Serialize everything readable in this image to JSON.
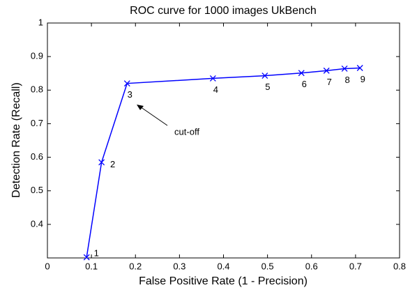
{
  "chart_data": {
    "type": "line",
    "title": "ROC curve for 1000 images UkBench",
    "xlabel": "False Positive Rate (1 - Precision)",
    "ylabel": "Detection Rate (Recall)",
    "x": [
      0.089,
      0.123,
      0.181,
      0.376,
      0.494,
      0.577,
      0.634,
      0.675,
      0.71
    ],
    "series": [
      {
        "name": "ROC",
        "color": "#0000ff",
        "values": [
          0.302,
          0.585,
          0.82,
          0.835,
          0.843,
          0.851,
          0.858,
          0.864,
          0.866
        ]
      }
    ],
    "point_labels": [
      "1",
      "2",
      "3",
      "4",
      "5",
      "6",
      "7",
      "8",
      "9"
    ],
    "annotation": {
      "text": "cut-off"
    },
    "xlim": [
      0,
      0.8
    ],
    "xticks": [
      0,
      0.1,
      0.2,
      0.3,
      0.4,
      0.5,
      0.6,
      0.7,
      0.8
    ],
    "ylim": [
      0.3,
      1
    ],
    "yticks": [
      0.4,
      0.5,
      0.6,
      0.7,
      0.8,
      0.9,
      1
    ],
    "grid": false
  }
}
